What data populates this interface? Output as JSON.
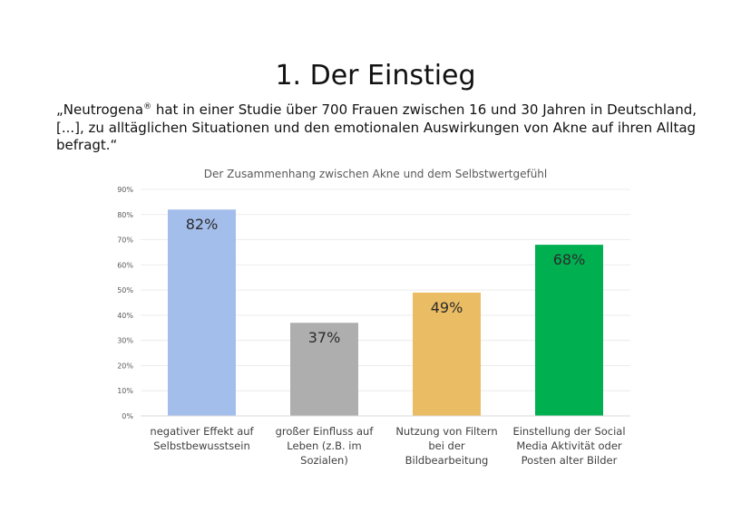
{
  "page": {
    "title": "1. Der Einstieg",
    "quote_part1": "„Neutrogena",
    "quote_sup": "®",
    "quote_part2": " hat in einer Studie über 700 Frauen zwischen 16 und 30 Jahren in Deutschland, [...], zu alltäglichen Situationen und den emotionalen Auswirkungen von Akne auf ihren Alltag befragt.“"
  },
  "chart_data": {
    "type": "bar",
    "title": "Der Zusammenhang zwischen Akne und dem Selbstwertgefühl",
    "categories": [
      [
        "negativer Effekt auf",
        "Selbstbewusstsein"
      ],
      [
        "großer Einfluss auf",
        "Leben (z.B. im",
        "Sozialen)"
      ],
      [
        "Nutzung von Filtern",
        "bei der",
        "Bildbearbeitung"
      ],
      [
        "Einstellung der Social",
        "Media Aktivität oder",
        "Posten alter Bilder"
      ]
    ],
    "values": [
      82,
      37,
      49,
      68
    ],
    "data_labels": [
      "82%",
      "37%",
      "49%",
      "68%"
    ],
    "bar_colors": [
      "#A4BEEC",
      "#AEAEAE",
      "#EABC63",
      "#00B050"
    ],
    "ylim": [
      0,
      90
    ],
    "yticks": [
      0,
      10,
      20,
      30,
      40,
      50,
      60,
      70,
      80,
      90
    ],
    "ytick_labels": [
      "0%",
      "10%",
      "20%",
      "30%",
      "40%",
      "50%",
      "60%",
      "70%",
      "80%",
      "90%"
    ],
    "xlabel": "",
    "ylabel": "",
    "grid": true,
    "legend": "none"
  }
}
